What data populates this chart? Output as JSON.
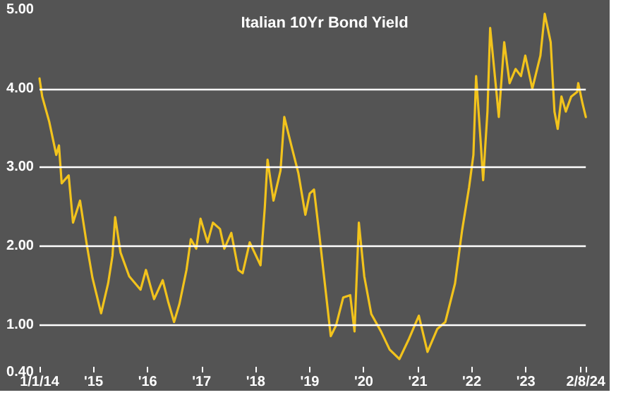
{
  "chart_data": {
    "type": "line",
    "title": "Italian 10Yr Bond Yield",
    "x": [
      2014,
      2014.05,
      2014.18,
      2014.31,
      2014.36,
      2014.41,
      2014.54,
      2014.62,
      2014.75,
      2014.88,
      2014.98,
      2015.14,
      2015.27,
      2015.35,
      2015.4,
      2015.5,
      2015.66,
      2015.87,
      2015.97,
      2016.12,
      2016.28,
      2016.38,
      2016.49,
      2016.59,
      2016.72,
      2016.8,
      2016.9,
      2016.98,
      2017.11,
      2017.21,
      2017.34,
      2017.42,
      2017.55,
      2017.68,
      2017.76,
      2017.89,
      2018.09,
      2018.17,
      2018.22,
      2018.33,
      2018.46,
      2018.53,
      2018.66,
      2018.79,
      2018.92,
      2019,
      2019.08,
      2019.18,
      2019.28,
      2019.39,
      2019.49,
      2019.62,
      2019.75,
      2019.83,
      2019.91,
      2020.01,
      2020.14,
      2020.32,
      2020.48,
      2020.66,
      2020.84,
      2021.02,
      2021.18,
      2021.36,
      2021.51,
      2021.69,
      2021.82,
      2021.95,
      2022.03,
      2022.08,
      2022.16,
      2022.21,
      2022.29,
      2022.34,
      2022.45,
      2022.5,
      2022.6,
      2022.7,
      2022.81,
      2022.91,
      2022.99,
      2023.12,
      2023.27,
      2023.35,
      2023.46,
      2023.53,
      2023.59,
      2023.66,
      2023.74,
      2023.84,
      2023.95,
      2023.97,
      2024.05,
      2024.11
    ],
    "series": [
      {
        "color": "#f2c31c",
        "values": [
          4.13,
          3.9,
          3.58,
          3.16,
          3.28,
          2.8,
          2.9,
          2.3,
          2.58,
          2.0,
          1.6,
          1.15,
          1.53,
          1.88,
          2.37,
          1.92,
          1.62,
          1.45,
          1.7,
          1.33,
          1.57,
          1.3,
          1.04,
          1.27,
          1.7,
          2.09,
          1.97,
          2.35,
          2.05,
          2.3,
          2.22,
          1.97,
          2.17,
          1.7,
          1.66,
          2.05,
          1.76,
          2.5,
          3.1,
          2.58,
          2.96,
          3.64,
          3.28,
          2.93,
          2.4,
          2.67,
          2.72,
          2.14,
          1.53,
          0.86,
          1.0,
          1.35,
          1.38,
          0.92,
          2.3,
          1.62,
          1.14,
          0.92,
          0.69,
          0.57,
          0.83,
          1.12,
          0.66,
          0.95,
          1.04,
          1.53,
          2.2,
          2.75,
          3.16,
          4.16,
          3.37,
          2.84,
          3.71,
          4.77,
          4.0,
          3.64,
          4.59,
          4.07,
          4.25,
          4.16,
          4.42,
          4.0,
          4.42,
          4.95,
          4.59,
          3.71,
          3.49,
          3.9,
          3.71,
          3.9,
          3.96,
          4.07,
          3.81,
          3.64
        ]
      }
    ],
    "xlim": [
      2014,
      2024.11
    ],
    "xticks": [
      {
        "value": 2014,
        "label": "1/1/14"
      },
      {
        "value": 2015,
        "label": "'15"
      },
      {
        "value": 2016,
        "label": "'16"
      },
      {
        "value": 2017,
        "label": "'17"
      },
      {
        "value": 2018,
        "label": "'18"
      },
      {
        "value": 2019,
        "label": "'19"
      },
      {
        "value": 2020,
        "label": "'20"
      },
      {
        "value": 2021,
        "label": "'21"
      },
      {
        "value": 2022,
        "label": "'22"
      },
      {
        "value": 2023,
        "label": "'23"
      },
      {
        "value": 2024,
        "label": null
      },
      {
        "value": 2024.11,
        "label": "2/8/24"
      }
    ],
    "ylim": [
      0.4,
      5
    ],
    "yticks": [
      {
        "value": 0.4,
        "label": "0.40"
      },
      {
        "value": 1,
        "label": "1.00"
      },
      {
        "value": 2,
        "label": "2.00"
      },
      {
        "value": 3,
        "label": "3.00"
      },
      {
        "value": 4,
        "label": "4.00"
      },
      {
        "value": 5,
        "label": "5.00"
      }
    ],
    "grid": "y",
    "marker": "none",
    "line_style": "solid"
  }
}
